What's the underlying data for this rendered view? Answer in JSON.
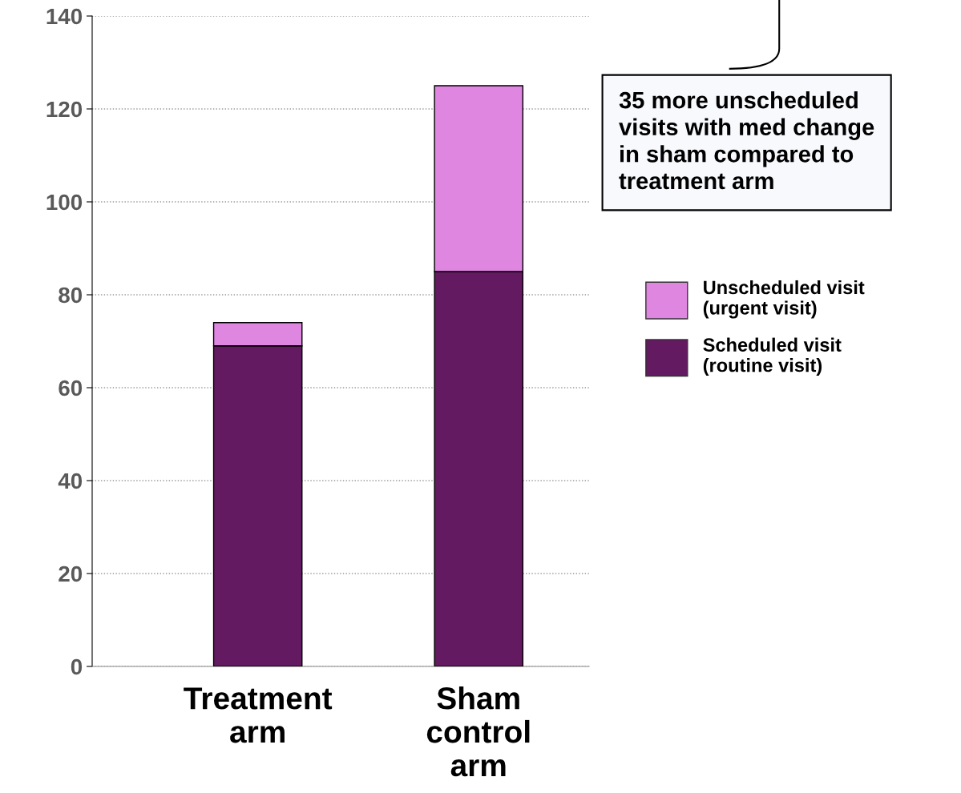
{
  "chart_data": {
    "type": "bar",
    "stacked": true,
    "categories": [
      "Treatment\narm",
      "Sham\ncontrol\narm"
    ],
    "series": [
      {
        "name": "Scheduled visit\n(routine visit)",
        "color": "#641a60",
        "values": [
          69,
          85
        ]
      },
      {
        "name": "Unscheduled visit\n(urgent visit)",
        "color": "#df86e0",
        "values": [
          5,
          40
        ]
      }
    ],
    "ylim": [
      0,
      140
    ],
    "yticks": [
      0,
      20,
      40,
      60,
      80,
      100,
      120,
      140
    ],
    "grid": "y",
    "legend": "right",
    "annotations": [
      "35 more unscheduled\nvisits with med change\nin sham compared to\ntreatment arm"
    ]
  }
}
